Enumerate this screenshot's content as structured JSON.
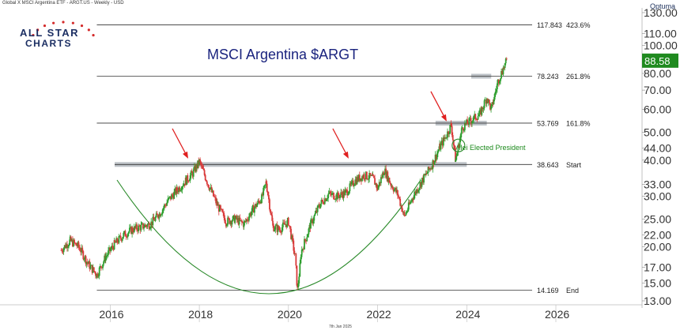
{
  "header": {
    "source_label": "Global X MSCI Argentina ETF - ARGT.US - Weekly - USD",
    "brand": "Optuma",
    "date_stamp": "7th Jan 2025"
  },
  "logo": {
    "line1": "ALL STAR",
    "line2": "CHARTS"
  },
  "chart_data": {
    "type": "line",
    "title": "MSCI Argentina $ARGT",
    "x_ticks": [
      "2016",
      "2018",
      "2020",
      "2022",
      "2024",
      "2026"
    ],
    "y_scale": "log",
    "y_ticks": [
      "13.00",
      "15.00",
      "17.00",
      "20.00",
      "22.00",
      "25.00",
      "30.00",
      "33.00",
      "40.00",
      "44.00",
      "50.00",
      "60.00",
      "70.00",
      "80.00",
      "100.00",
      "110.00",
      "130.00"
    ],
    "last_price": "88.58",
    "series": [
      {
        "x": [
          2014.9,
          2015.1,
          2015.3,
          2015.5,
          2015.7,
          2015.9,
          2016.1,
          2016.3,
          2016.5,
          2016.7,
          2016.9,
          2017.1,
          2017.3,
          2017.5,
          2017.7,
          2017.85,
          2018.0,
          2018.2,
          2018.4,
          2018.6,
          2018.8,
          2019.0,
          2019.2,
          2019.4,
          2019.5,
          2019.65,
          2019.8,
          2020.0,
          2020.15,
          2020.2,
          2020.3,
          2020.5,
          2020.7,
          2020.9,
          2021.1,
          2021.3,
          2021.5,
          2021.7,
          2021.9,
          2022.0,
          2022.15,
          2022.3,
          2022.45,
          2022.6,
          2022.8,
          2023.0,
          2023.2,
          2023.4,
          2023.55,
          2023.65,
          2023.75,
          2023.9,
          2024.1,
          2024.3,
          2024.45,
          2024.55,
          2024.7,
          2024.8,
          2024.9
        ],
        "close": [
          19.5,
          21.0,
          20.0,
          17.5,
          16.0,
          18.5,
          20.5,
          22.0,
          23.0,
          23.5,
          24.0,
          26.0,
          29.0,
          31.5,
          34.0,
          36.0,
          39.5,
          33.0,
          28.0,
          24.5,
          25.0,
          24.0,
          27.0,
          29.5,
          33.5,
          23.5,
          23.0,
          24.5,
          18.5,
          14.2,
          19.5,
          24.0,
          28.0,
          30.5,
          30.0,
          31.0,
          34.0,
          35.5,
          34.5,
          32.0,
          37.0,
          33.0,
          30.5,
          25.5,
          30.0,
          34.0,
          38.0,
          44.5,
          49.0,
          53.0,
          40.0,
          52.0,
          55.0,
          58.0,
          66.0,
          60.0,
          75.0,
          82.0,
          88.58
        ]
      }
    ],
    "levels": [
      {
        "value": "117.843",
        "label": "423.6%"
      },
      {
        "value": "78.243",
        "label": "261.8%"
      },
      {
        "value": "53.769",
        "label": "161.8%"
      },
      {
        "value": "38.643",
        "label": "Start"
      },
      {
        "value": "14.169",
        "label": "End"
      }
    ],
    "annotations": [
      {
        "text": "Milei Elected President",
        "x": 2023.85,
        "y": 45
      }
    ],
    "arrows": [
      {
        "x": 2017.75,
        "y": 40.5
      },
      {
        "x": 2021.35,
        "y": 40.5
      },
      {
        "x": 2023.55,
        "y": 54.5
      }
    ],
    "colors": {
      "up": "#2e9e2e",
      "down": "#d93a3a",
      "level": "#333333",
      "arc": "#2a8a2a",
      "arrow": "#e02020",
      "last_price_bg": "#1f8a1f",
      "zone": "#a7adb4",
      "title": "#1a237e"
    }
  }
}
